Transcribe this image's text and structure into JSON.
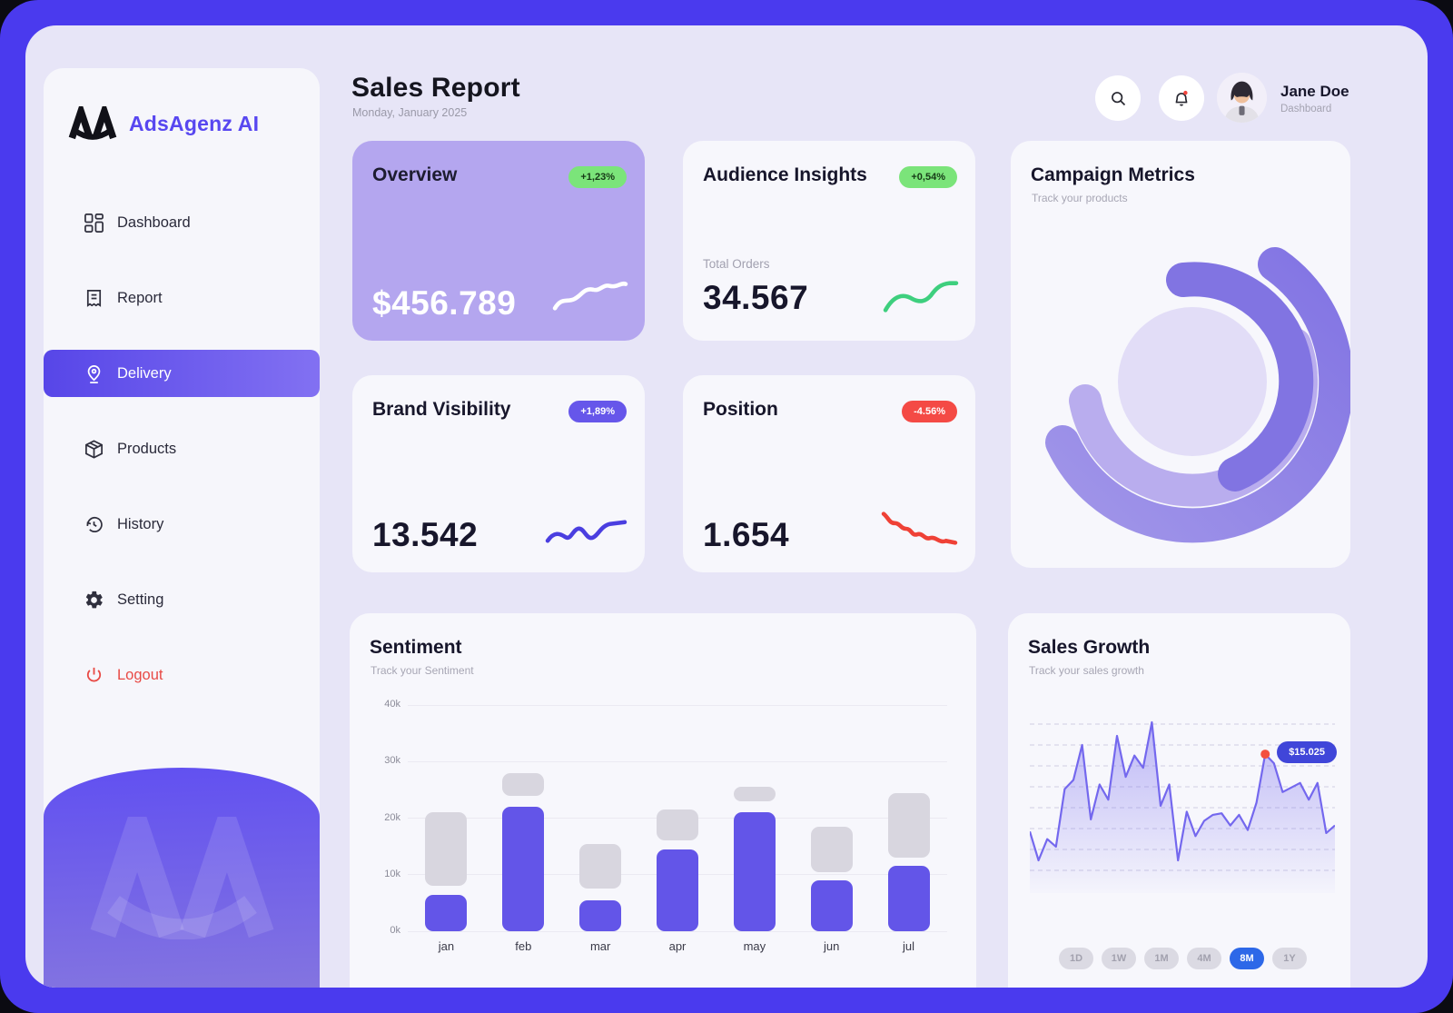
{
  "brand": {
    "name": "AdsAgenz AI"
  },
  "sidebar": {
    "items": [
      {
        "label": "Dashboard"
      },
      {
        "label": "Report"
      },
      {
        "label": "Delivery",
        "active": true
      },
      {
        "label": "Products"
      },
      {
        "label": "History"
      },
      {
        "label": "Setting"
      },
      {
        "label": "Logout"
      }
    ]
  },
  "header": {
    "title": "Sales Report",
    "date": "Monday, January 2025",
    "user": {
      "name": "Jane Doe",
      "role": "Dashboard"
    }
  },
  "cards": {
    "overview": {
      "title": "Overview",
      "badge": "+1,23%",
      "value": "$456.789",
      "spark_color": "#ffffff"
    },
    "audience": {
      "title": "Audience Insights",
      "badge": "+0,54%",
      "label": "Total Orders",
      "value": "34.567",
      "spark_color": "#3ECF7E"
    },
    "brand_visibility": {
      "title": "Brand Visibility",
      "badge": "+1,89%",
      "value": "13.542",
      "spark_color": "#4A3EE0"
    },
    "position": {
      "title": "Position",
      "badge": "-4.56%",
      "value": "1.654",
      "spark_color": "#EF4136"
    },
    "campaign": {
      "title": "Campaign Metrics",
      "subtitle": "Track your products"
    }
  },
  "sentiment": {
    "title": "Sentiment",
    "subtitle": "Track your Sentiment",
    "chart_data": {
      "type": "bar",
      "categories": [
        "jan",
        "feb",
        "mar",
        "apr",
        "may",
        "jun",
        "jul"
      ],
      "series": [
        {
          "name": "primary",
          "color": "#6355E8",
          "values": [
            6.5,
            22,
            5.5,
            14.5,
            21,
            9,
            11.5
          ]
        },
        {
          "name": "secondary",
          "color": "#D8D6DF",
          "ranges": [
            [
              8,
              21
            ],
            [
              24,
              28
            ],
            [
              7.5,
              15.5
            ],
            [
              16,
              21.5
            ],
            [
              23,
              25.5
            ],
            [
              10.5,
              18.5
            ],
            [
              13,
              24.5
            ]
          ]
        }
      ],
      "ylabel_ticks": [
        "0k",
        "10k",
        "20k",
        "30k",
        "40k"
      ],
      "ylim": [
        0,
        40
      ],
      "unit": "k",
      "grid": true
    }
  },
  "sales_growth": {
    "title": "Sales Growth",
    "subtitle": "Track your sales growth",
    "chart_data": {
      "type": "area",
      "points": [
        28,
        9,
        23,
        18,
        56,
        62,
        85,
        36,
        59,
        49,
        91,
        64,
        78,
        70,
        100,
        45,
        59,
        9,
        41,
        25,
        35,
        39,
        40,
        32,
        39,
        29,
        47,
        79,
        73,
        54,
        57,
        60,
        49,
        60,
        27,
        32
      ],
      "ylim": [
        0,
        100
      ],
      "grid": "dashed",
      "highlight": {
        "index": 27,
        "label": "$15.025"
      }
    },
    "ranges": [
      "1D",
      "1W",
      "1M",
      "4M",
      "8M",
      "1Y"
    ],
    "active_range": "8M"
  },
  "colors": {
    "frame": "#4A3AEE",
    "accent": "#5847F0",
    "overview_card": "#B4A6EF",
    "positive_badge": "#7BE47A",
    "purple_badge": "#6656EA",
    "negative_badge": "#F44A45",
    "bar_primary": "#6355E8",
    "bar_secondary": "#D8D6DF",
    "area_line": "#7468EE",
    "tooltip_bg": "#4046D9",
    "active_range_bg": "#2D68E8"
  }
}
